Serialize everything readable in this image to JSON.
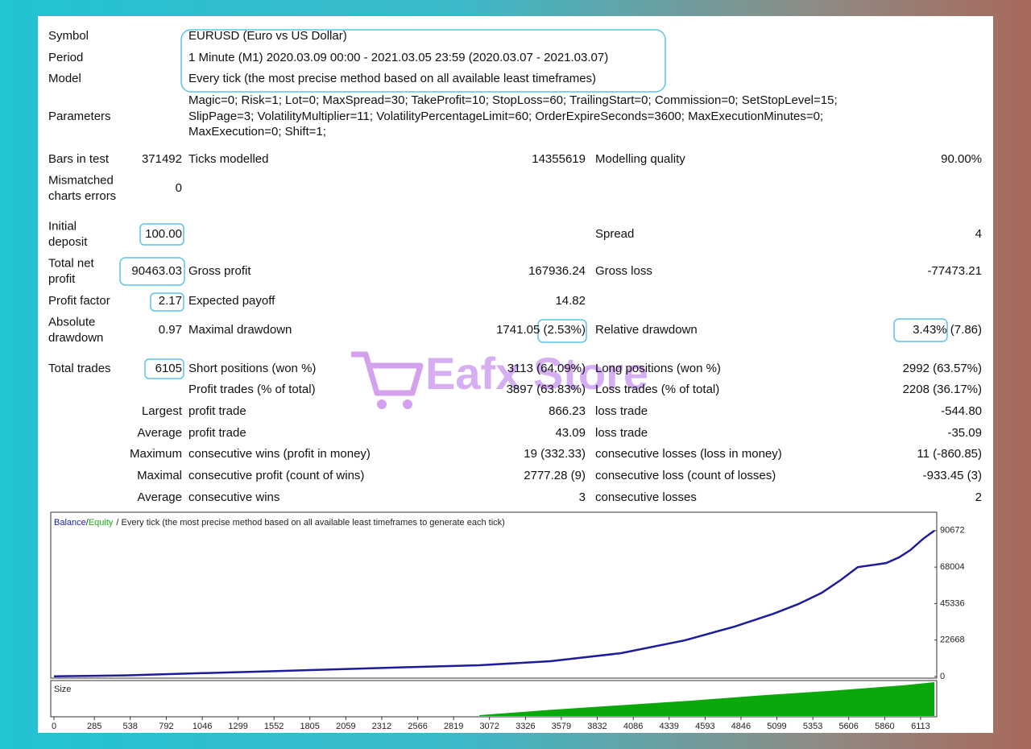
{
  "header": {
    "rows": [
      {
        "label": "Symbol",
        "value": "EURUSD (Euro vs US Dollar)"
      },
      {
        "label": "Period",
        "value": "1 Minute (M1) 2020.03.09 00:00 - 2021.03.05 23:59 (2020.03.07 - 2021.03.07)"
      },
      {
        "label": "Model",
        "value": "Every tick (the most precise method based on all available least timeframes)"
      }
    ],
    "parameters": {
      "label": "Parameters",
      "lines": [
        "Magic=0; Risk=1; Lot=0; MaxSpread=30; TakeProfit=10; StopLoss=60; TrailingStart=0; Commission=0; SetStopLevel=15;",
        "SlipPage=3; VolatilityMultiplier=11; VolatilityPercentageLimit=60; OrderExpireSeconds=3600; MaxExecutionMinutes=0;",
        "MaxExecution=0; Shift=1;"
      ]
    }
  },
  "stats": {
    "bars": {
      "label": "Bars in test",
      "value": "371492"
    },
    "ticks": {
      "label": "Ticks modelled",
      "value": "14355619"
    },
    "quality": {
      "label": "Modelling quality",
      "value": "90.00%"
    },
    "mismatched": {
      "label": [
        "Mismatched",
        "charts errors"
      ],
      "value": "0"
    },
    "initial_deposit": {
      "label": [
        "Initial",
        "deposit"
      ],
      "value": "100.00"
    },
    "spread": {
      "label": "Spread",
      "value": "4"
    },
    "total_net_profit": {
      "label": [
        "Total net",
        "profit"
      ],
      "value": "90463.03"
    },
    "gross_profit": {
      "label": "Gross profit",
      "value": "167936.24"
    },
    "gross_loss": {
      "label": "Gross loss",
      "value": "-77473.21"
    },
    "profit_factor": {
      "label": "Profit factor",
      "value": "2.17"
    },
    "expected_payoff": {
      "label": "Expected payoff",
      "value": "14.82"
    },
    "absolute_drawdown": {
      "label": [
        "Absolute",
        "drawdown"
      ],
      "value": "0.97"
    },
    "maximal_drawdown": {
      "label": "Maximal drawdown",
      "value": "1741.05 (2.53%)"
    },
    "relative_drawdown": {
      "label": "Relative drawdown",
      "value": "3.43% (7.86)"
    },
    "total_trades": {
      "label": "Total trades",
      "value": "6105"
    },
    "short_positions": {
      "label": "Short positions (won %)",
      "value": "3113 (64.09%)"
    },
    "long_positions": {
      "label": "Long positions (won %)",
      "value": "2992 (63.57%)"
    },
    "profit_trades": {
      "label": "Profit trades (% of total)",
      "value": "3897 (63.83%)"
    },
    "loss_trades": {
      "label": "Loss trades (% of total)",
      "value": "2208 (36.17%)"
    },
    "groups": [
      {
        "label": "Largest",
        "profit_label": "profit trade",
        "profit": "866.23",
        "loss_label": "loss trade",
        "loss": "-544.80"
      },
      {
        "label": "Average",
        "profit_label": "profit trade",
        "profit": "43.09",
        "loss_label": "loss trade",
        "loss": "-35.09"
      },
      {
        "label": "Maximum",
        "profit_label": "consecutive wins (profit in money)",
        "profit": "19 (332.33)",
        "loss_label": "consecutive losses (loss in money)",
        "loss": "11 (-860.85)"
      },
      {
        "label": "Maximal",
        "profit_label": "consecutive profit (count of wins)",
        "profit": "2777.28 (9)",
        "loss_label": "consecutive loss (count of losses)",
        "loss": "-933.45 (3)"
      },
      {
        "label": "Average",
        "profit_label": "consecutive wins",
        "profit": "3",
        "loss_label": "consecutive losses",
        "loss": "2"
      }
    ]
  },
  "watermark": "Eafx Store",
  "chart_data": {
    "type": "line",
    "legend_separator": "/",
    "subtitle": "/ Every tick (the most precise method based on all available least timeframes to generate each tick)",
    "x": [
      0,
      500,
      1000,
      1500,
      2000,
      2500,
      3000,
      3500,
      4000,
      4450,
      4800,
      5075,
      5250,
      5415,
      5550,
      5670,
      5870,
      5960,
      6040,
      6130,
      6210
    ],
    "series": [
      {
        "name": "Balance",
        "color": "#1c1c9c",
        "values": [
          100,
          700,
          2000,
          3200,
          4500,
          5800,
          7000,
          9500,
          14500,
          22500,
          31000,
          39000,
          45000,
          52000,
          60000,
          68000,
          70500,
          74000,
          78500,
          85500,
          90672
        ]
      },
      {
        "name": "Equity",
        "color": "#18b018",
        "values": [
          100,
          700,
          2000,
          3200,
          4500,
          5800,
          7000,
          9500,
          14500,
          22500,
          31000,
          39000,
          45000,
          52000,
          60000,
          68000,
          70500,
          74000,
          78500,
          85500,
          90672
        ]
      }
    ],
    "xlim": [
      0,
      6210
    ],
    "ylim": [
      0,
      101600
    ],
    "yticks": [
      0,
      22668,
      45336,
      68004,
      90672
    ],
    "xticks": [
      0,
      285,
      538,
      792,
      1046,
      1299,
      1552,
      1805,
      2059,
      2312,
      2566,
      2819,
      3072,
      3326,
      3579,
      3832,
      4086,
      4339,
      4593,
      4846,
      5099,
      5353,
      5606,
      5860,
      6113
    ],
    "size": {
      "label": "Size",
      "color": "#0aa80a",
      "type": "area",
      "x": [
        3000,
        3500,
        4000,
        4500,
        5000,
        5500,
        6000,
        6210
      ],
      "values": [
        1,
        8,
        14,
        20,
        27,
        33,
        40,
        44
      ],
      "ylim": [
        0,
        45
      ]
    }
  }
}
